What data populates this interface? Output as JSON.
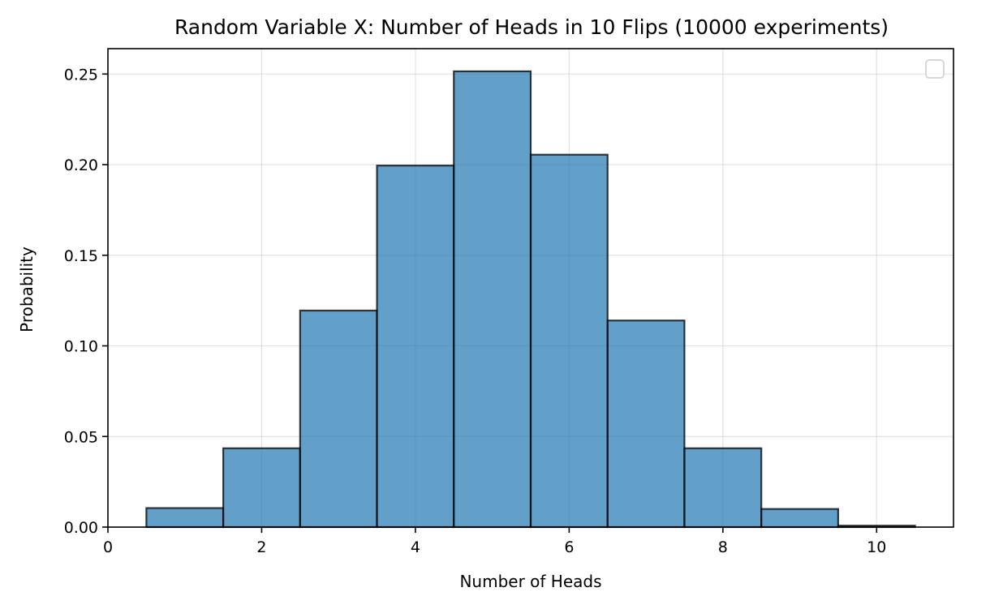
{
  "chart_data": {
    "type": "bar",
    "title": "Random Variable X: Number of Heads in 10 Flips (10000 experiments)",
    "xlabel": "Number of Heads",
    "ylabel": "Probability",
    "x": [
      1,
      2,
      3,
      4,
      5,
      6,
      7,
      8,
      9,
      10
    ],
    "bin_width": 1,
    "values": [
      0.0105,
      0.0435,
      0.1195,
      0.1995,
      0.2515,
      0.2055,
      0.114,
      0.0435,
      0.01,
      0.0008
    ],
    "xlim": [
      0,
      11
    ],
    "ylim": [
      0,
      0.264
    ],
    "xticks": [
      0,
      2,
      4,
      6,
      8,
      10
    ],
    "yticks": [
      0,
      0.05,
      0.1,
      0.15,
      0.2,
      0.25
    ],
    "xtick_labels": [
      "0",
      "2",
      "4",
      "6",
      "8",
      "10"
    ],
    "ytick_labels": [
      "0.00",
      "0.05",
      "0.10",
      "0.15",
      "0.20",
      "0.25"
    ],
    "grid": true,
    "legend": "top-right",
    "bar_color": "#1f77b4",
    "edge_color": "#000000"
  }
}
